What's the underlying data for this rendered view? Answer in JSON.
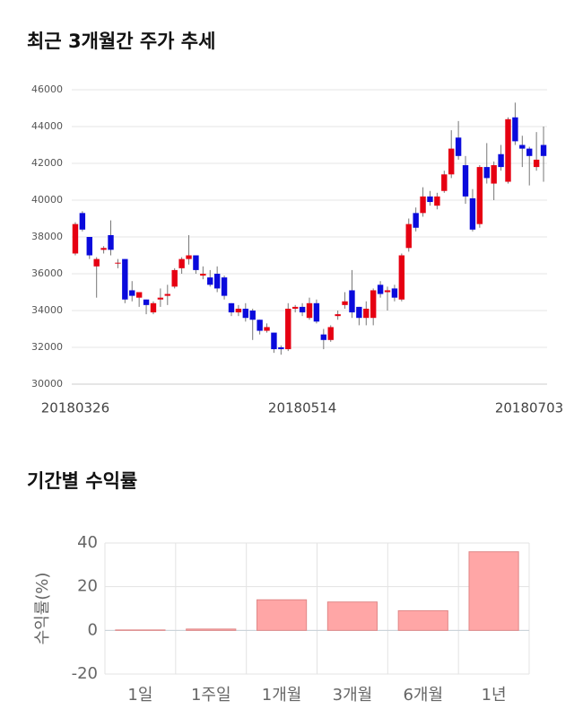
{
  "chart_data": [
    {
      "type": "candlestick",
      "title": "최근 3개월간 주가 추세",
      "categories": [
        "20180326",
        null,
        null,
        null,
        null,
        null,
        null,
        null,
        null,
        null,
        null,
        null,
        null,
        null,
        null,
        null,
        null,
        null,
        null,
        null,
        null,
        null,
        null,
        null,
        null,
        null,
        null,
        null,
        null,
        null,
        null,
        null,
        "20180514",
        null,
        null,
        null,
        null,
        null,
        null,
        null,
        null,
        null,
        null,
        null,
        null,
        null,
        null,
        null,
        null,
        null,
        null,
        null,
        null,
        null,
        null,
        null,
        null,
        null,
        null,
        null,
        null,
        null,
        null,
        null,
        "20180703",
        null,
        null
      ],
      "open": [
        37100,
        39300,
        38000,
        36400,
        37300,
        38100,
        36600,
        36800,
        35100,
        34700,
        34600,
        33900,
        34600,
        34800,
        35300,
        36300,
        36800,
        37000,
        35900,
        35800,
        36000,
        35800,
        34400,
        33900,
        34100,
        34000,
        33500,
        32900,
        32800,
        32000,
        31900,
        34100,
        34200,
        33600,
        34400,
        32700,
        32400,
        33700,
        34300,
        35100,
        34200,
        33600,
        33600,
        35400,
        35000,
        35200,
        34600,
        37400,
        39300,
        39300,
        40200,
        39700,
        40500,
        41400,
        43400,
        41900,
        40100,
        38700,
        41800,
        40900,
        42500,
        41000,
        44500,
        43000,
        42800,
        41800,
        43000
      ],
      "high": [
        38800,
        39400,
        38000,
        36900,
        37500,
        38900,
        36800,
        36800,
        35600,
        35000,
        34600,
        34500,
        35200,
        35400,
        36300,
        36900,
        38100,
        37000,
        36400,
        36200,
        36400,
        35900,
        34400,
        34300,
        34400,
        34100,
        33500,
        33300,
        32800,
        32100,
        34400,
        34300,
        34400,
        34700,
        34600,
        33000,
        33200,
        34000,
        35000,
        36200,
        34200,
        34500,
        35200,
        35600,
        35300,
        35400,
        37100,
        39000,
        39600,
        40700,
        40500,
        40400,
        41600,
        43800,
        44300,
        42400,
        40600,
        41900,
        43100,
        42100,
        43000,
        44500,
        45300,
        43500,
        42900,
        43700,
        44000
      ],
      "low": [
        37000,
        38300,
        36800,
        34700,
        37100,
        37000,
        36300,
        34400,
        34500,
        34200,
        33800,
        33800,
        34200,
        34300,
        35200,
        36000,
        36500,
        36000,
        35700,
        35300,
        35000,
        34600,
        33700,
        33700,
        33400,
        32400,
        32700,
        32800,
        31700,
        31600,
        31800,
        33900,
        33700,
        33500,
        33300,
        31900,
        32300,
        33500,
        34100,
        33600,
        33200,
        33200,
        33200,
        34700,
        34000,
        34500,
        34500,
        37200,
        38300,
        39100,
        39700,
        39500,
        40400,
        41200,
        42200,
        39800,
        38300,
        38500,
        40900,
        40000,
        41600,
        40900,
        43000,
        41800,
        40800,
        41600,
        41000
      ],
      "close": [
        38700,
        38400,
        37000,
        36800,
        37400,
        37300,
        36600,
        34600,
        34800,
        35000,
        34300,
        34400,
        34700,
        34900,
        36200,
        36800,
        37000,
        36200,
        36000,
        35400,
        35200,
        34800,
        33900,
        34100,
        33600,
        33500,
        32900,
        33100,
        31900,
        31900,
        34100,
        34200,
        33900,
        34400,
        33400,
        32400,
        33100,
        33800,
        34500,
        33900,
        33600,
        34100,
        35100,
        34900,
        35100,
        34700,
        37000,
        38700,
        38500,
        40200,
        39900,
        40200,
        41400,
        42800,
        42400,
        40200,
        38400,
        41800,
        41200,
        41900,
        41800,
        44400,
        43200,
        42800,
        42400,
        42200,
        42400
      ],
      "up_color": "#e60012",
      "down_color": "#0a0adc",
      "ylim": [
        30000,
        46000
      ],
      "yticks": [
        30000,
        32000,
        34000,
        36000,
        38000,
        40000,
        42000,
        44000,
        46000
      ],
      "grid": true
    },
    {
      "type": "bar",
      "title": "기간별 수익률",
      "y_label": "수익률(%)",
      "categories": [
        "1일",
        "1주일",
        "1개월",
        "3개월",
        "6개월",
        "1년"
      ],
      "values": [
        0.2,
        0.6,
        14,
        13,
        9,
        36
      ],
      "color": "#ffa6a6",
      "edge_color": "#e08888",
      "ylim": [
        -20,
        40
      ],
      "yticks": [
        -20,
        0,
        20,
        40
      ],
      "grid": true
    }
  ]
}
